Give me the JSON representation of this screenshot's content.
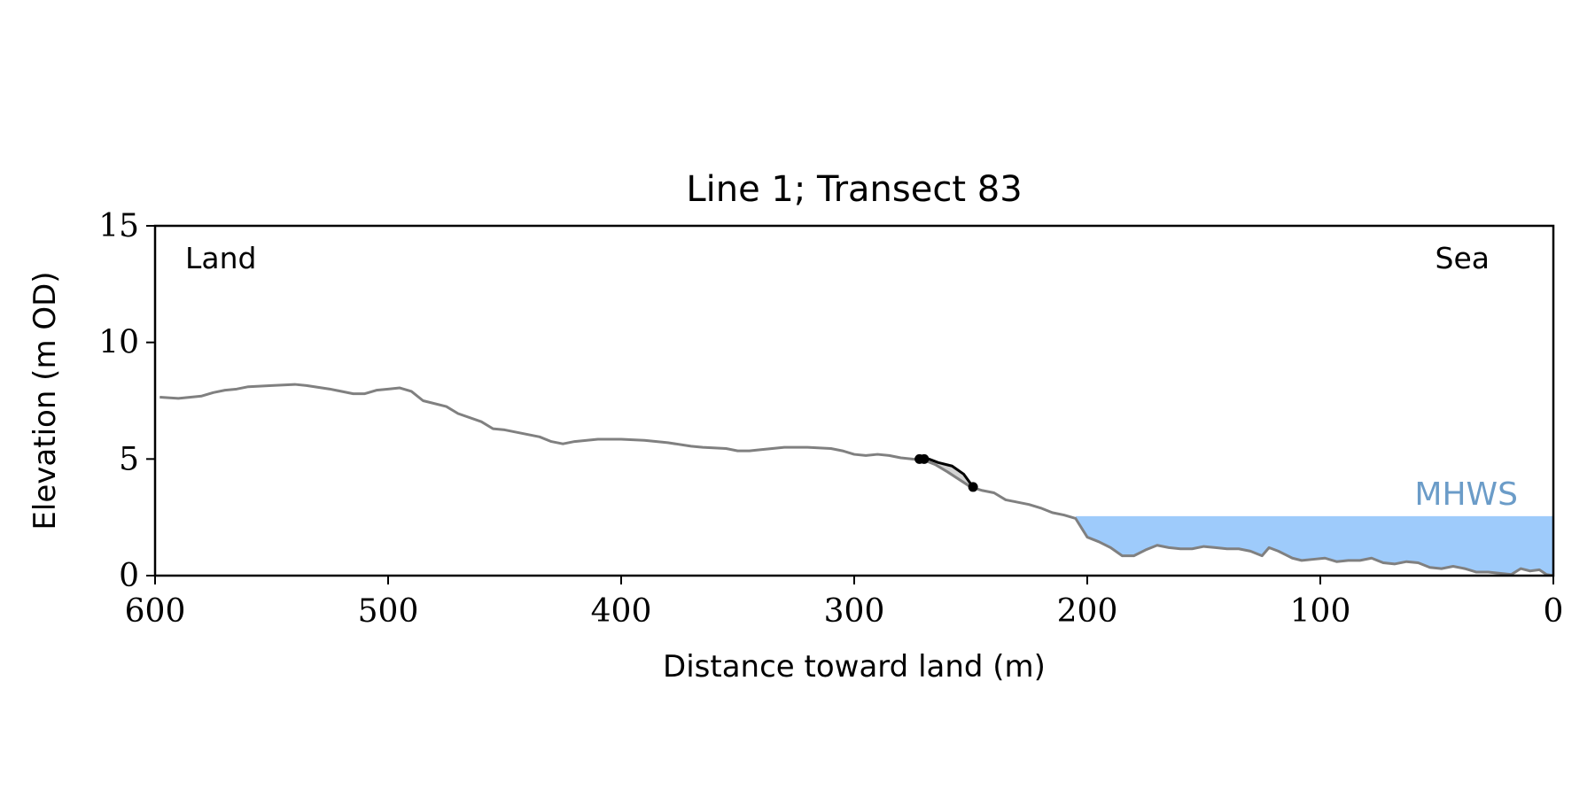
{
  "chart_data": {
    "type": "line",
    "title": "Line 1; Transect 83",
    "xlabel": "Distance toward land (m)",
    "ylabel": "Elevation (m OD)",
    "xlim": [
      600,
      0
    ],
    "ylim": [
      0,
      15
    ],
    "x_inverted": true,
    "xticks": [
      600,
      500,
      400,
      300,
      200,
      100,
      0
    ],
    "yticks": [
      0,
      5,
      10,
      15
    ],
    "grid": false,
    "annotations": {
      "land": "Land",
      "sea": "Sea",
      "mhws_label": "MHWS"
    },
    "mhws": {
      "level": 2.55,
      "x_from": 205,
      "x_to": 0,
      "color": "#9ecbfb",
      "label_color": "#6b9cc8"
    },
    "colors": {
      "profile": "#808080",
      "segment": "#000000",
      "segment_fill": "#d3d3d3"
    },
    "series": [
      {
        "id": "profile",
        "points": [
          [
            598,
            7.65
          ],
          [
            590,
            7.6
          ],
          [
            580,
            7.7
          ],
          [
            575,
            7.85
          ],
          [
            570,
            7.95
          ],
          [
            565,
            8.0
          ],
          [
            560,
            8.1
          ],
          [
            550,
            8.15
          ],
          [
            540,
            8.2
          ],
          [
            535,
            8.15
          ],
          [
            525,
            8.0
          ],
          [
            515,
            7.8
          ],
          [
            510,
            7.8
          ],
          [
            505,
            7.95
          ],
          [
            500,
            8.0
          ],
          [
            495,
            8.05
          ],
          [
            490,
            7.9
          ],
          [
            485,
            7.5
          ],
          [
            475,
            7.25
          ],
          [
            470,
            6.95
          ],
          [
            460,
            6.6
          ],
          [
            455,
            6.3
          ],
          [
            450,
            6.25
          ],
          [
            440,
            6.05
          ],
          [
            435,
            5.95
          ],
          [
            430,
            5.75
          ],
          [
            425,
            5.65
          ],
          [
            420,
            5.75
          ],
          [
            410,
            5.85
          ],
          [
            400,
            5.85
          ],
          [
            390,
            5.8
          ],
          [
            380,
            5.7
          ],
          [
            370,
            5.55
          ],
          [
            365,
            5.5
          ],
          [
            355,
            5.45
          ],
          [
            350,
            5.35
          ],
          [
            345,
            5.35
          ],
          [
            340,
            5.4
          ],
          [
            330,
            5.5
          ],
          [
            320,
            5.5
          ],
          [
            310,
            5.45
          ],
          [
            305,
            5.35
          ],
          [
            300,
            5.2
          ],
          [
            295,
            5.15
          ],
          [
            290,
            5.2
          ],
          [
            285,
            5.15
          ],
          [
            280,
            5.05
          ],
          [
            275,
            5.0
          ],
          [
            270,
            4.95
          ],
          [
            265,
            4.75
          ],
          [
            260,
            4.45
          ],
          [
            250,
            3.8
          ],
          [
            245,
            3.65
          ],
          [
            240,
            3.55
          ],
          [
            235,
            3.25
          ],
          [
            230,
            3.15
          ],
          [
            225,
            3.05
          ],
          [
            220,
            2.9
          ],
          [
            215,
            2.7
          ],
          [
            210,
            2.6
          ],
          [
            205,
            2.45
          ],
          [
            200,
            1.65
          ],
          [
            195,
            1.45
          ],
          [
            190,
            1.2
          ],
          [
            185,
            0.85
          ],
          [
            180,
            0.85
          ],
          [
            175,
            1.1
          ],
          [
            170,
            1.3
          ],
          [
            165,
            1.2
          ],
          [
            160,
            1.15
          ],
          [
            155,
            1.15
          ],
          [
            150,
            1.25
          ],
          [
            145,
            1.2
          ],
          [
            140,
            1.15
          ],
          [
            135,
            1.15
          ],
          [
            130,
            1.05
          ],
          [
            125,
            0.85
          ],
          [
            122,
            1.2
          ],
          [
            118,
            1.05
          ],
          [
            115,
            0.9
          ],
          [
            112,
            0.75
          ],
          [
            108,
            0.65
          ],
          [
            103,
            0.7
          ],
          [
            98,
            0.75
          ],
          [
            93,
            0.6
          ],
          [
            88,
            0.65
          ],
          [
            83,
            0.65
          ],
          [
            78,
            0.75
          ],
          [
            73,
            0.55
          ],
          [
            68,
            0.5
          ],
          [
            63,
            0.6
          ],
          [
            58,
            0.55
          ],
          [
            53,
            0.35
          ],
          [
            48,
            0.3
          ],
          [
            43,
            0.4
          ],
          [
            38,
            0.3
          ],
          [
            33,
            0.15
          ],
          [
            28,
            0.15
          ],
          [
            23,
            0.1
          ],
          [
            18,
            0.05
          ],
          [
            14,
            0.3
          ],
          [
            10,
            0.2
          ],
          [
            6,
            0.25
          ],
          [
            3,
            0.05
          ],
          [
            0,
            0.0
          ]
        ]
      },
      {
        "id": "segment",
        "points": [
          [
            271.5,
            5.0
          ],
          [
            268,
            5.0
          ],
          [
            264,
            4.85
          ],
          [
            258,
            4.7
          ],
          [
            253,
            4.35
          ],
          [
            249,
            3.8
          ]
        ],
        "markers": [
          [
            272,
            5.0
          ],
          [
            270,
            5.0
          ],
          [
            249,
            3.8
          ]
        ]
      }
    ]
  }
}
